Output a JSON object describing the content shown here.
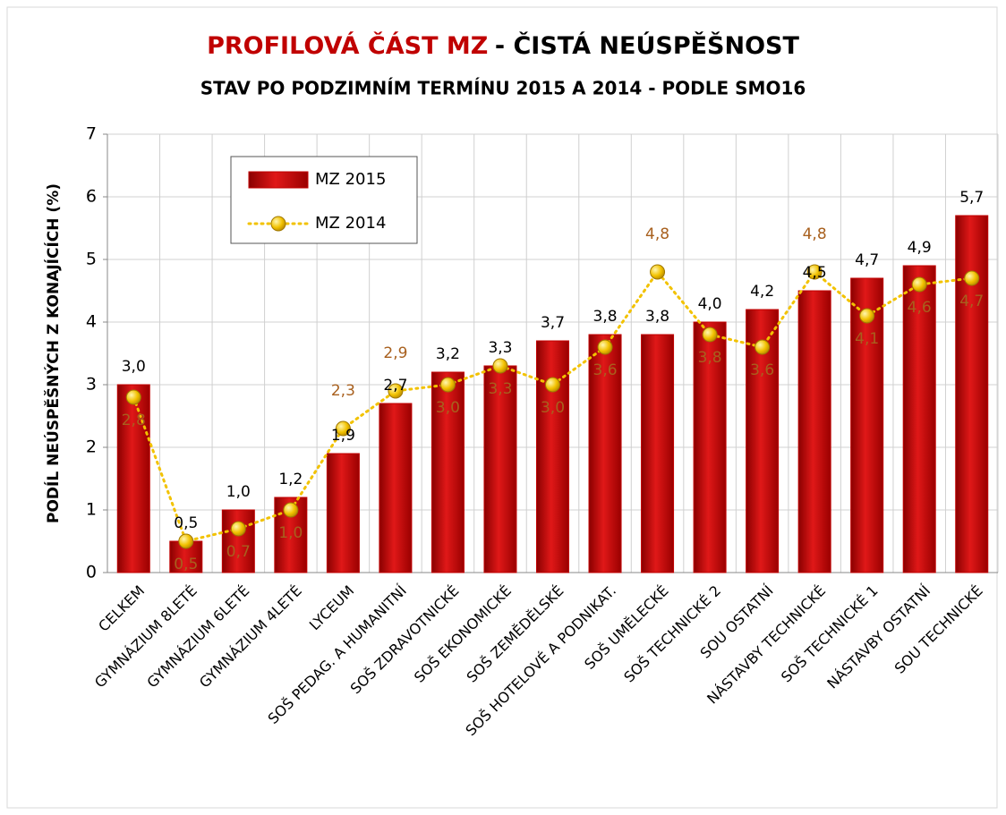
{
  "chart_data": {
    "type": "bar_line",
    "title": [
      "PROFILOVÁ ČÁST MZ",
      "- ČISTÁ NEÚSPĚŠNOST"
    ],
    "subtitle": "STAV PO PODZIMNÍM TERMÍNU 2015 A 2014 - PODLE SMO16",
    "ylabel": "PODÍL NEÚSPĚŠNÝCH Z KONAJÍCÍCH (%)",
    "categories": [
      "CELKEM",
      "GYMNÁZIUM 8LETÉ",
      "GYMNÁZIUM 6LETÉ",
      "GYMNÁZIUM 4LETÉ",
      "LYCEUM",
      "SOŠ PEDAG. A HUMANITNÍ",
      "SOŠ ZDRAVOTNICKÉ",
      "SOŠ EKONOMICKÉ",
      "SOŠ ZEMĚDĚLSKÉ",
      "SOŠ HOTELOVÉ A PODNIKAT.",
      "SOŠ UMĚLECKÉ",
      "SOŠ TECHNICKÉ 2",
      "SOU OSTATNÍ",
      "NÁSTAVBY TECHNICKÉ",
      "SOŠ TECHNICKÉ 1",
      "NÁSTAVBY OSTATNÍ",
      "SOU TECHNICKÉ"
    ],
    "series": [
      {
        "name": "MZ 2015",
        "type": "bar",
        "color": "#c00000",
        "values": [
          3.0,
          0.5,
          1.0,
          1.2,
          1.9,
          2.7,
          3.2,
          3.3,
          3.7,
          3.8,
          3.8,
          4.0,
          4.2,
          4.5,
          4.7,
          4.9,
          5.7
        ],
        "value_labels": [
          "3,0",
          "0,5",
          "1,0",
          "1,2",
          "1,9",
          "2,7",
          "3,2",
          "3,3",
          "3,7",
          "3,8",
          "3,8",
          "4,0",
          "4,2",
          "4,5",
          "4,7",
          "4,9",
          "5,7"
        ]
      },
      {
        "name": "MZ 2014",
        "type": "line",
        "color": "#f2c200",
        "values": [
          2.8,
          0.5,
          0.7,
          1.0,
          2.3,
          2.9,
          3.0,
          3.3,
          3.0,
          3.6,
          4.8,
          3.8,
          3.6,
          4.8,
          4.1,
          4.6,
          4.7
        ],
        "value_labels": [
          "2,8",
          "0,5",
          "0,7",
          "1,0",
          "2,3",
          "2,9",
          "3,0",
          "3,3",
          "3,0",
          "3,6",
          "4,8",
          "3,8",
          "3,6",
          "4,8",
          "4,1",
          "4,6",
          "4,7"
        ]
      }
    ],
    "ylim": [
      0,
      7
    ],
    "yticks": [
      0,
      1,
      2,
      3,
      4,
      5,
      6,
      7
    ],
    "grid": true,
    "legend": "upper left"
  }
}
